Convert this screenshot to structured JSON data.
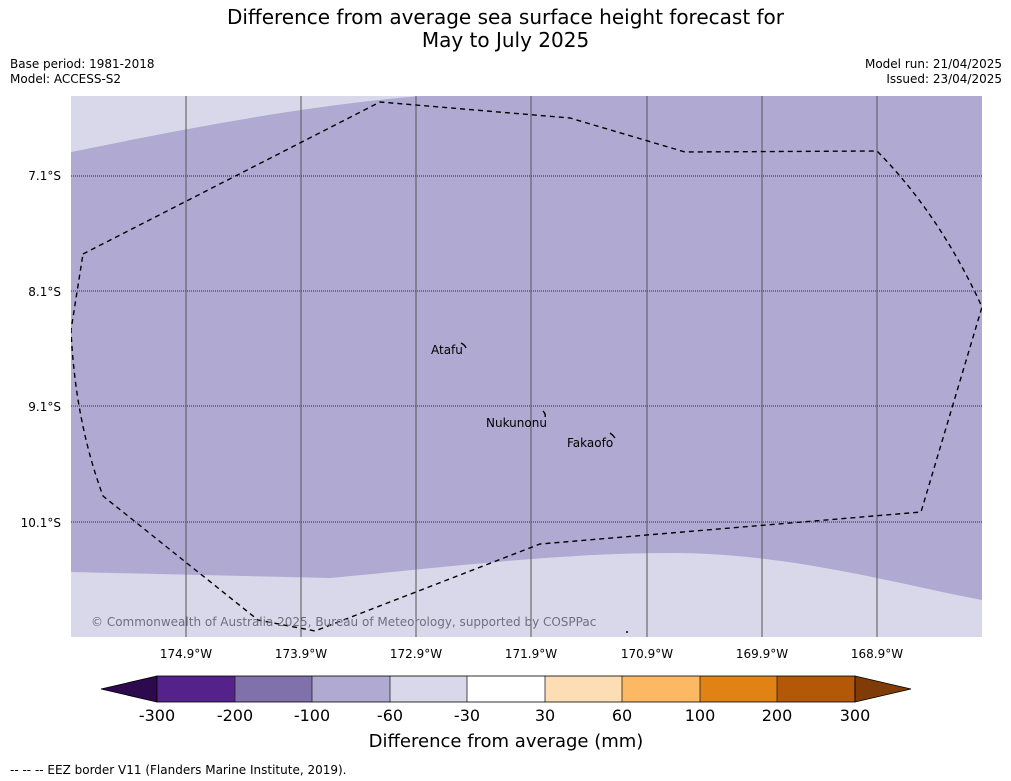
{
  "header": {
    "title_line1": "Difference from average sea surface height forecast for",
    "title_line2": "May to July 2025",
    "base_period": "Base period: 1981-2018",
    "model": "Model: ACCESS-S2",
    "model_run": "Model run: 21/04/2025",
    "issued": "Issued: 23/04/2025"
  },
  "map": {
    "lat_labels": [
      "7.1°S",
      "8.1°S",
      "9.1°S",
      "10.1°S"
    ],
    "lon_labels": [
      "174.9°W",
      "173.9°W",
      "172.9°W",
      "171.9°W",
      "170.9°W",
      "169.9°W",
      "168.9°W"
    ],
    "places": [
      {
        "name": "Atafu"
      },
      {
        "name": "Nukunonu"
      },
      {
        "name": "Fakaofo"
      }
    ],
    "copyright": "© Commonwealth of Australia 2025, Bureau of Meteorology, supported by COSPPac",
    "colors": {
      "band_minus100_minus60": "#b0aad2",
      "band_minus60_minus30": "#d8d8ea"
    }
  },
  "colorbar": {
    "label": "Difference from average (mm)",
    "ticks": [
      "-300",
      "-200",
      "-100",
      "-60",
      "-30",
      "30",
      "60",
      "100",
      "200",
      "300"
    ],
    "colors": {
      "below_-300": "#2d0a4e",
      "-300_-200": "#54228a",
      "-200_-100": "#8071ad",
      "-100_-60": "#b0aad2",
      "-60_-30": "#d8d8ea",
      "-30_30": "#ffffff",
      "30_60": "#fddeb4",
      "60_100": "#fdb863",
      "100_200": "#e08214",
      "200_300": "#b35806",
      "above_300": "#7f3b08"
    }
  },
  "footer": {
    "legend_line": "--  --  -- EEZ border V11 (Flanders Marine Institute, 2019)."
  }
}
